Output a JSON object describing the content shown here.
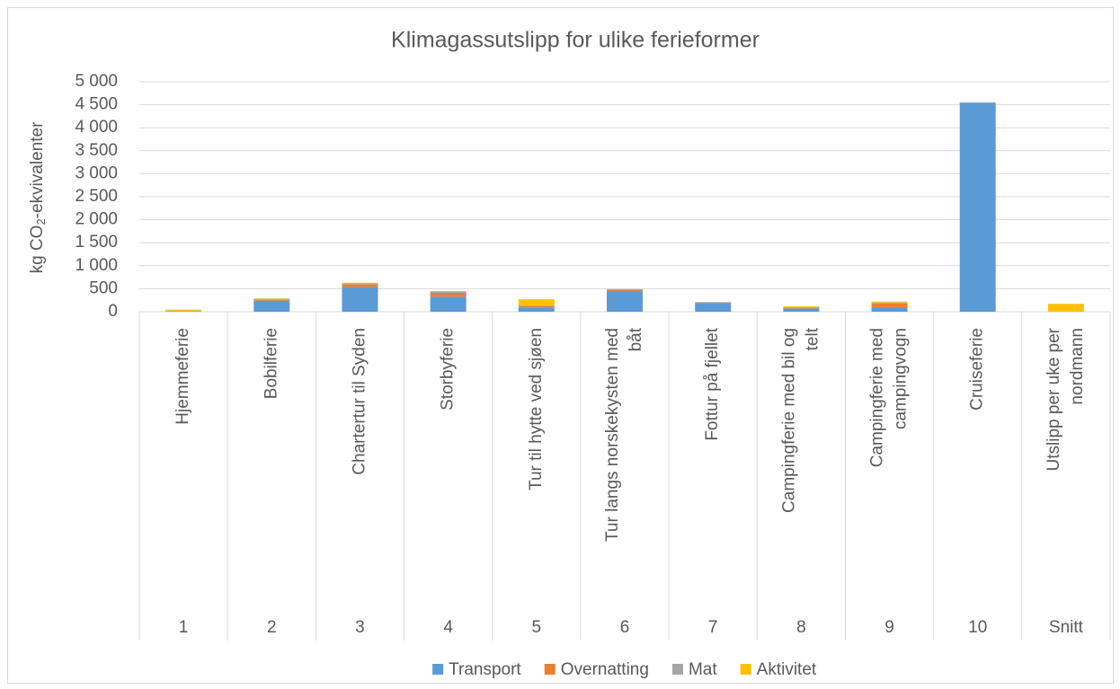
{
  "chart_data": {
    "type": "stacked_bar",
    "title": "Klimagassutslipp for ulike ferieformer",
    "y_label": {
      "prefix": "kg CO",
      "sub": "2",
      "suffix": "-ekvivalenter"
    },
    "categories": [
      "1",
      "2",
      "3",
      "4",
      "5",
      "6",
      "7",
      "8",
      "9",
      "10",
      "Snitt"
    ],
    "category_names": [
      [
        "Hjemmeferie"
      ],
      [
        "Bobilferie"
      ],
      [
        "Chartertur til Syden"
      ],
      [
        "Storbyferie"
      ],
      [
        "Tur til hytte ved sjøen"
      ],
      [
        "Tur langs norskekysten med",
        "båt"
      ],
      [
        "Fottur på fjellet"
      ],
      [
        "Campingferie med bil og",
        "telt"
      ],
      [
        "Campingferie med",
        "campingvogn"
      ],
      [
        "Cruiseferie"
      ],
      [
        "Utslipp per uke per",
        "nordmann"
      ]
    ],
    "series": [
      {
        "name": "Transport",
        "color": "#5b9bd5",
        "values": [
          5,
          240,
          540,
          330,
          80,
          440,
          190,
          70,
          100,
          4540,
          0
        ]
      },
      {
        "name": "Overnatting",
        "color": "#ed7d31",
        "values": [
          10,
          20,
          60,
          80,
          40,
          30,
          5,
          10,
          80,
          0,
          0
        ]
      },
      {
        "name": "Mat",
        "color": "#a5a5a5",
        "values": [
          10,
          20,
          20,
          20,
          20,
          20,
          15,
          20,
          20,
          10,
          0
        ]
      },
      {
        "name": "Aktivitet",
        "color": "#ffc000",
        "values": [
          20,
          10,
          10,
          20,
          130,
          0,
          0,
          20,
          20,
          0,
          170
        ]
      }
    ],
    "ylim": [
      0,
      5000
    ],
    "yticks": [
      0,
      500,
      {
        "value": 1000,
        "label": "1 000"
      },
      {
        "value": 1500,
        "label": "1 500"
      },
      {
        "value": 2000,
        "label": "2 000"
      },
      {
        "value": 2500,
        "label": "2 500"
      },
      {
        "value": 3000,
        "label": "3 000"
      },
      {
        "value": 3500,
        "label": "3 500"
      },
      {
        "value": 4000,
        "label": "4 000"
      },
      {
        "value": 4500,
        "label": "4 500"
      },
      {
        "value": 5000,
        "label": "5 000"
      }
    ],
    "grid": true,
    "legend": "bottom"
  }
}
